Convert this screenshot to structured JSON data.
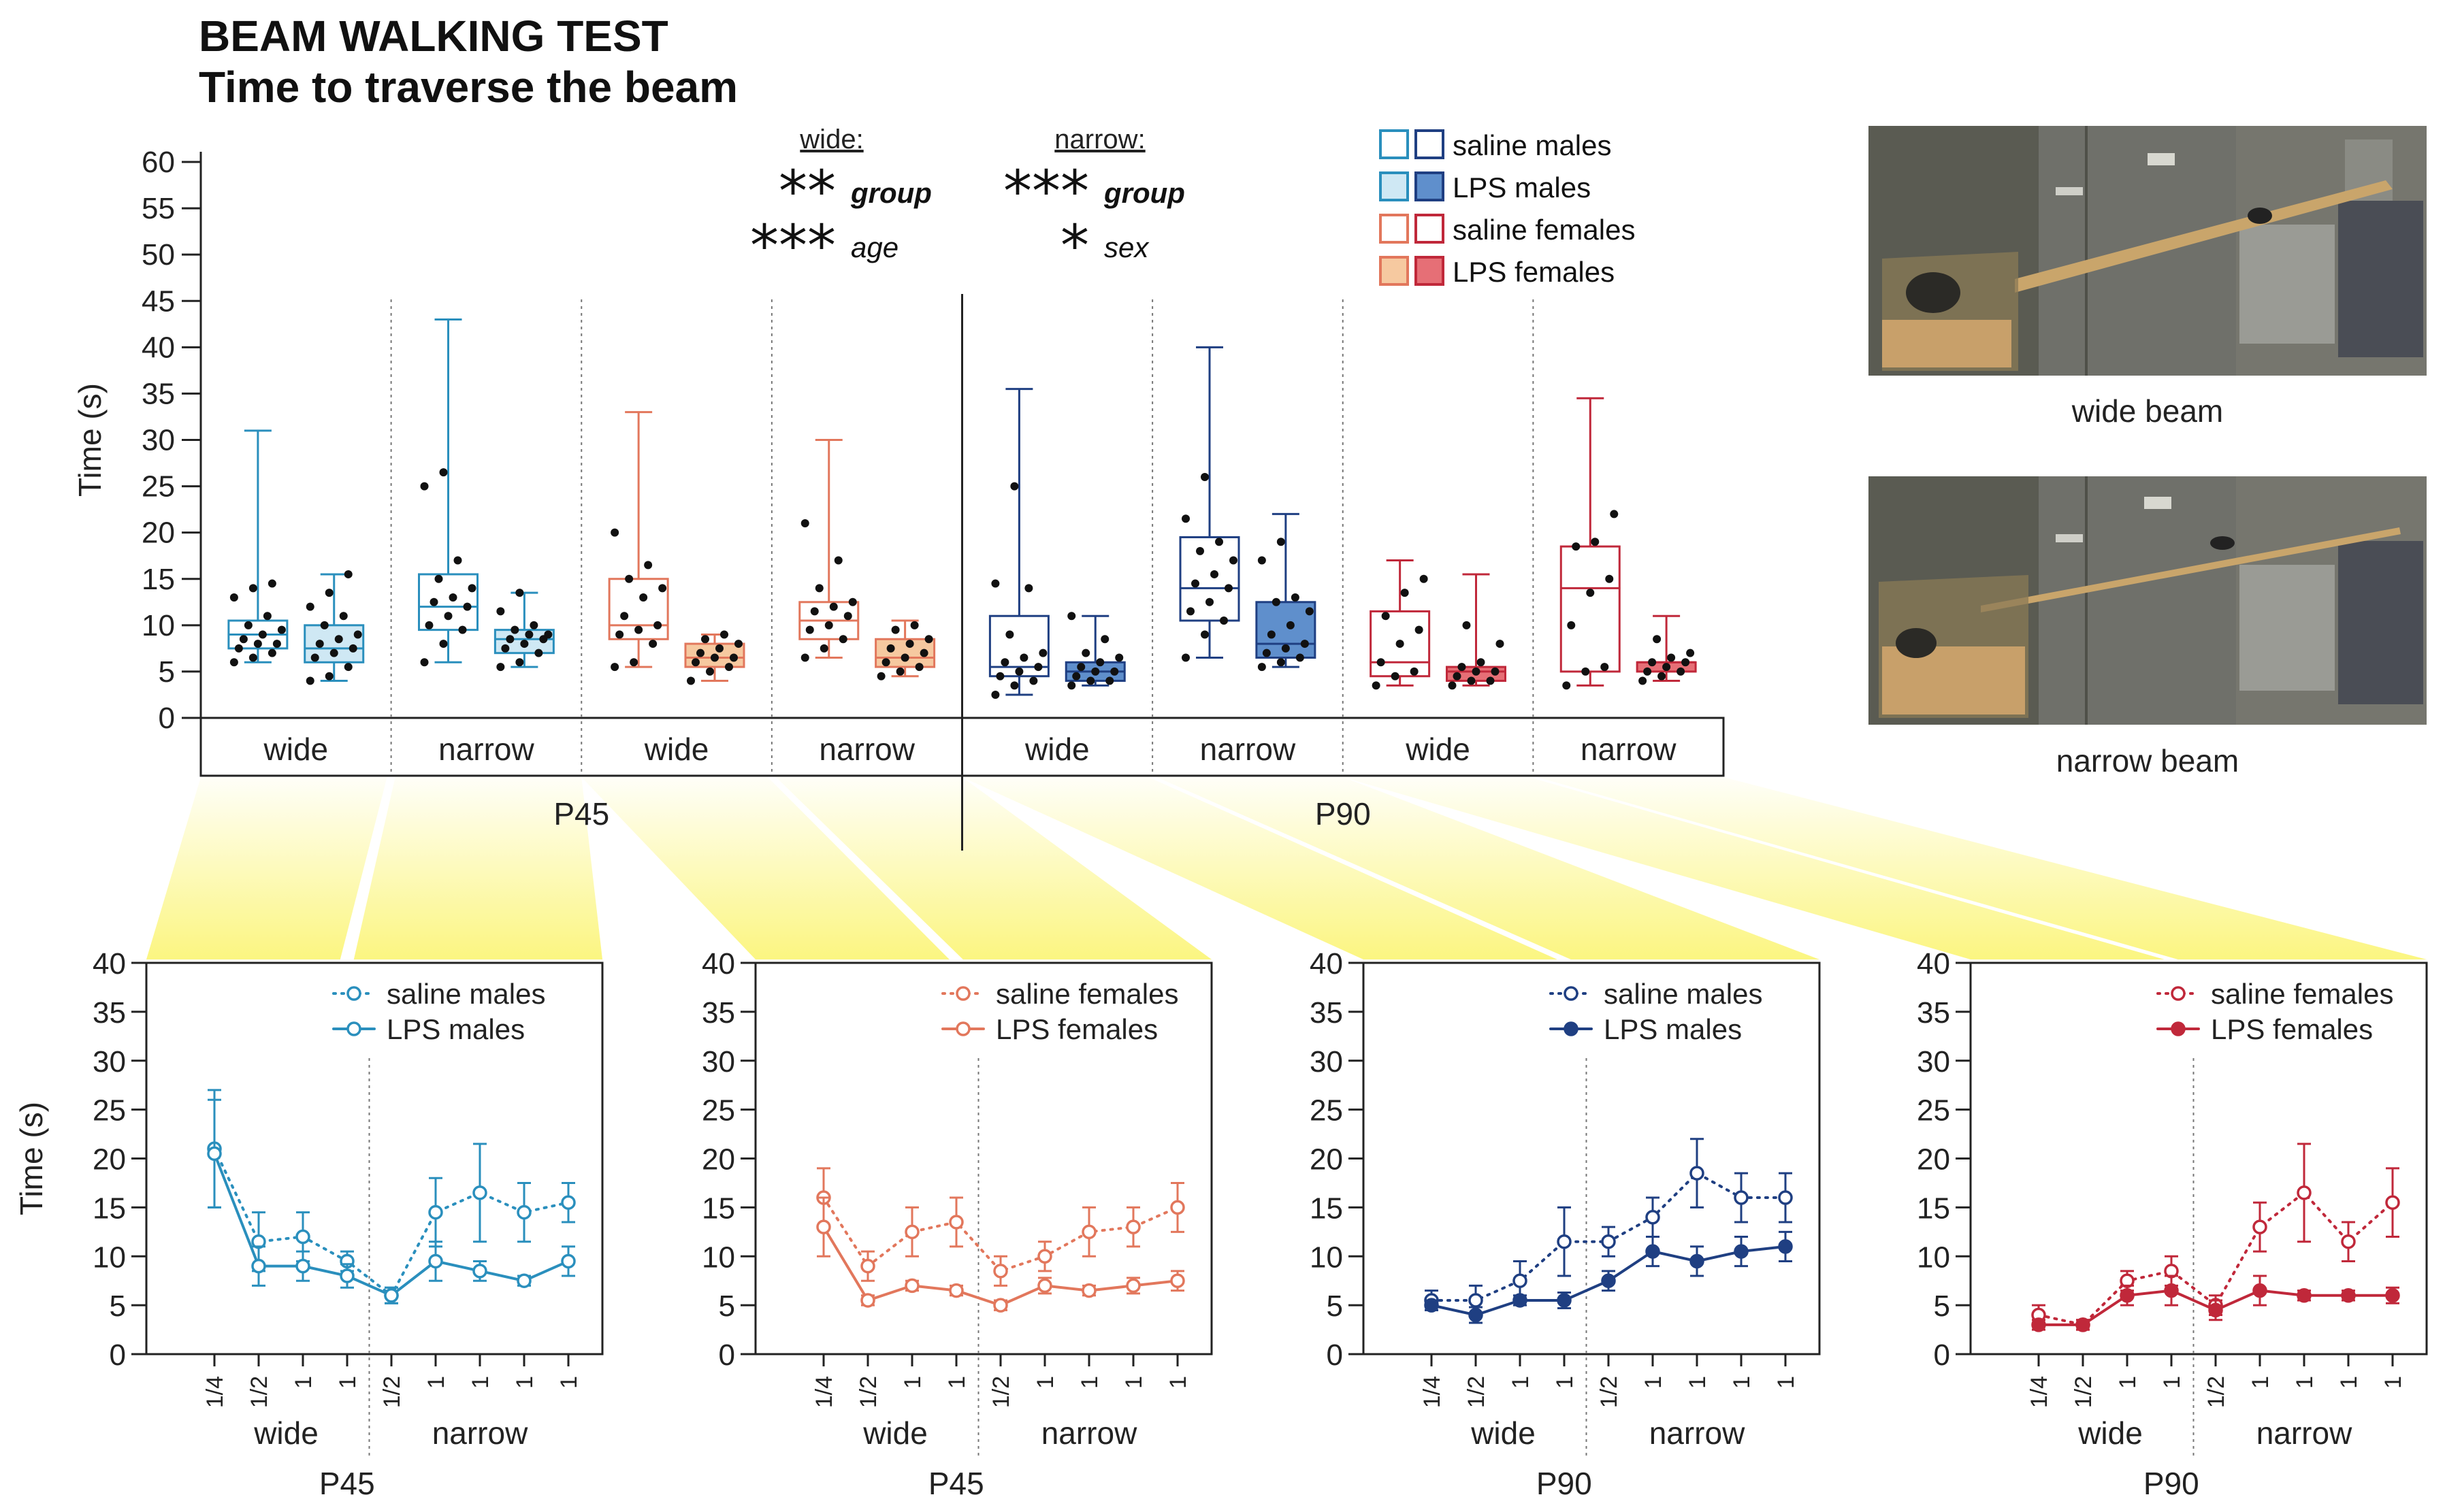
{
  "header": {
    "title_line1": "BEAM WALKING TEST",
    "title_line2": "Time to traverse the beam"
  },
  "colors": {
    "saline_males_p45": "#2a8fbd",
    "lps_males_p45_fill": "#cfe8f4",
    "saline_females_p45": "#e2775c",
    "lps_females_p45_fill": "#f6c9a0",
    "saline_males_p90": "#1f3f82",
    "lps_males_p90_fill": "#5f8fcc",
    "saline_females_p90": "#c0283a",
    "lps_females_p90_fill": "#e66f76",
    "highlight": "#fbf57a"
  },
  "legend": {
    "items": [
      {
        "label": "saline males"
      },
      {
        "label": "LPS males"
      },
      {
        "label": "saline females"
      },
      {
        "label": "LPS females"
      }
    ]
  },
  "stats": {
    "wide_header": "wide:",
    "narrow_header": "narrow:",
    "wide_lines": [
      {
        "stars": "**",
        "effect": "group"
      },
      {
        "stars": "***",
        "effect": "age"
      }
    ],
    "narrow_lines": [
      {
        "stars": "***",
        "effect": "group"
      },
      {
        "stars": "*",
        "effect": "sex"
      }
    ]
  },
  "photos": {
    "wide_caption": "wide beam",
    "narrow_caption": "narrow beam"
  },
  "chart_data": [
    {
      "type": "box",
      "title": "Time to traverse the beam",
      "ylabel": "Time (s)",
      "ylim": [
        0,
        60
      ],
      "yticks": [
        0,
        5,
        10,
        15,
        20,
        25,
        30,
        35,
        40,
        45,
        50,
        55,
        60
      ],
      "age_groups": [
        "P45",
        "P90"
      ],
      "beam_labels": [
        "wide",
        "narrow",
        "wide",
        "narrow",
        "wide",
        "narrow",
        "wide",
        "narrow"
      ],
      "boxes": [
        {
          "age": "P45",
          "beam": "wide",
          "group": "saline males",
          "color": "#2a8fbd",
          "fill": "none",
          "min": 6,
          "q1": 7.5,
          "median": 9,
          "q3": 10.5,
          "max": 31,
          "points": [
            6,
            6.5,
            7,
            7.5,
            8,
            8,
            8.5,
            9,
            9.5,
            10,
            11,
            13,
            14,
            14.5
          ]
        },
        {
          "age": "P45",
          "beam": "wide",
          "group": "LPS males",
          "color": "#2a8fbd",
          "fill": "#cfe8f4",
          "min": 4,
          "q1": 6,
          "median": 7.5,
          "q3": 10,
          "max": 15.5,
          "points": [
            4,
            4.5,
            5.5,
            6.5,
            7,
            7.5,
            8,
            8.5,
            9,
            10,
            11,
            12,
            13.5,
            15.5
          ]
        },
        {
          "age": "P45",
          "beam": "narrow",
          "group": "saline males",
          "color": "#2a8fbd",
          "fill": "none",
          "min": 6,
          "q1": 9.5,
          "median": 12,
          "q3": 15.5,
          "max": 43,
          "points": [
            6,
            8,
            9.5,
            10,
            11,
            12,
            12.5,
            13,
            14,
            15,
            17,
            25,
            26.5
          ]
        },
        {
          "age": "P45",
          "beam": "narrow",
          "group": "LPS males",
          "color": "#2a8fbd",
          "fill": "#cfe8f4",
          "min": 5.5,
          "q1": 7,
          "median": 8.5,
          "q3": 9.5,
          "max": 13.5,
          "points": [
            5.5,
            6,
            7,
            7.5,
            8,
            8.5,
            8.5,
            9,
            9,
            9.5,
            10,
            11.5,
            13.5
          ]
        },
        {
          "age": "P45",
          "beam": "wide",
          "group": "saline females",
          "color": "#e2775c",
          "fill": "none",
          "min": 5.5,
          "q1": 8.5,
          "median": 10,
          "q3": 15,
          "max": 33,
          "points": [
            5.5,
            6,
            8,
            9,
            9.5,
            10,
            11,
            13,
            14,
            15,
            16.5,
            20
          ]
        },
        {
          "age": "P45",
          "beam": "wide",
          "group": "LPS females",
          "color": "#e2775c",
          "fill": "#f6c9a0",
          "min": 4,
          "q1": 5.5,
          "median": 6.5,
          "q3": 8,
          "max": 9,
          "points": [
            4,
            5,
            5.5,
            6,
            6.5,
            6.5,
            7,
            7.5,
            8,
            8.5,
            9
          ]
        },
        {
          "age": "P45",
          "beam": "narrow",
          "group": "saline females",
          "color": "#e2775c",
          "fill": "none",
          "min": 6.5,
          "q1": 8.5,
          "median": 10.5,
          "q3": 12.5,
          "max": 30,
          "points": [
            6.5,
            7.5,
            8.5,
            9.5,
            10,
            11,
            11.5,
            12,
            12.5,
            14,
            17,
            21
          ]
        },
        {
          "age": "P45",
          "beam": "narrow",
          "group": "LPS females",
          "color": "#e2775c",
          "fill": "#f6c9a0",
          "min": 4.5,
          "q1": 5.5,
          "median": 6.5,
          "q3": 8.5,
          "max": 10.5,
          "points": [
            4.5,
            5,
            5.5,
            6,
            6.5,
            7,
            7.5,
            8,
            8.5,
            9.5,
            10
          ]
        },
        {
          "age": "P90",
          "beam": "wide",
          "group": "saline males",
          "color": "#1f3f82",
          "fill": "none",
          "min": 2.5,
          "q1": 4.5,
          "median": 5.5,
          "q3": 11,
          "max": 35.5,
          "points": [
            2.5,
            3.5,
            4,
            4.5,
            5,
            5.5,
            6,
            6.5,
            7,
            9,
            14,
            14.5,
            25
          ]
        },
        {
          "age": "P90",
          "beam": "wide",
          "group": "LPS males",
          "color": "#1f3f82",
          "fill": "#5f8fcc",
          "min": 3.5,
          "q1": 4,
          "median": 5,
          "q3": 6,
          "max": 11,
          "points": [
            3.5,
            4,
            4,
            4.5,
            5,
            5,
            5.5,
            6,
            6.5,
            7,
            8.5,
            11
          ]
        },
        {
          "age": "P90",
          "beam": "narrow",
          "group": "saline males",
          "color": "#1f3f82",
          "fill": "none",
          "min": 6.5,
          "q1": 10.5,
          "median": 14,
          "q3": 19.5,
          "max": 40,
          "points": [
            6.5,
            9,
            10.5,
            11.5,
            12.5,
            14,
            14.5,
            15.5,
            17,
            18,
            19,
            21.5,
            26
          ]
        },
        {
          "age": "P90",
          "beam": "narrow",
          "group": "LPS males",
          "color": "#1f3f82",
          "fill": "#5f8fcc",
          "min": 5.5,
          "q1": 6.5,
          "median": 8,
          "q3": 12.5,
          "max": 22,
          "points": [
            5.5,
            6,
            6.5,
            7,
            7.5,
            8,
            9,
            10,
            11.5,
            12.5,
            13,
            17,
            19
          ]
        },
        {
          "age": "P90",
          "beam": "wide",
          "group": "saline females",
          "color": "#c0283a",
          "fill": "none",
          "min": 3.5,
          "q1": 4.5,
          "median": 6,
          "q3": 11.5,
          "max": 17,
          "points": [
            3.5,
            4.5,
            5,
            6,
            8,
            9.5,
            11,
            13.5,
            15
          ]
        },
        {
          "age": "P90",
          "beam": "wide",
          "group": "LPS females",
          "color": "#c0283a",
          "fill": "#e66f76",
          "min": 3.5,
          "q1": 4,
          "median": 5,
          "q3": 5.5,
          "max": 15.5,
          "points": [
            3.5,
            4,
            4,
            4.5,
            5,
            5,
            5.5,
            6,
            8,
            10
          ]
        },
        {
          "age": "P90",
          "beam": "narrow",
          "group": "saline females",
          "color": "#c0283a",
          "fill": "none",
          "min": 3.5,
          "q1": 5,
          "median": 14,
          "q3": 18.5,
          "max": 34.5,
          "points": [
            3.5,
            5,
            5.5,
            10,
            13.5,
            15,
            18.5,
            19,
            22
          ]
        },
        {
          "age": "P90",
          "beam": "narrow",
          "group": "LPS females",
          "color": "#c0283a",
          "fill": "#e66f76",
          "min": 4,
          "q1": 5,
          "median": 6,
          "q3": 6,
          "max": 11,
          "points": [
            4,
            4.5,
            5,
            5,
            5.5,
            6,
            6,
            6.5,
            7,
            8.5
          ]
        }
      ]
    },
    {
      "type": "line",
      "age": "P45",
      "ylabel": "Time (s)",
      "ylim": [
        0,
        40
      ],
      "yticks": [
        0,
        5,
        10,
        15,
        20,
        25,
        30,
        35,
        40
      ],
      "x_tick_labels": [
        "1/4",
        "1/2",
        "1",
        "1",
        "1/2",
        "1",
        "1",
        "1",
        "1"
      ],
      "beam_groups": [
        "wide",
        "narrow"
      ],
      "series": [
        {
          "name": "saline males",
          "style": "dotted",
          "color": "#2a8fbd",
          "filled_marker": false,
          "values": [
            21,
            11.5,
            12,
            9.5,
            6,
            14.5,
            16.5,
            14.5,
            15.5
          ],
          "errors": [
            6,
            3,
            2.5,
            1,
            0.8,
            3.5,
            5,
            3,
            2
          ]
        },
        {
          "name": "LPS males",
          "style": "solid",
          "color": "#2a8fbd",
          "filled_marker": false,
          "values": [
            20.5,
            9,
            9,
            8,
            6,
            9.5,
            8.5,
            7.5,
            9.5
          ],
          "errors": [
            5.5,
            2,
            1.5,
            1.2,
            0.8,
            2,
            1,
            0.5,
            1.5
          ]
        }
      ]
    },
    {
      "type": "line",
      "age": "P45",
      "ylabel": "Time (s)",
      "ylim": [
        0,
        40
      ],
      "yticks": [
        0,
        5,
        10,
        15,
        20,
        25,
        30,
        35,
        40
      ],
      "x_tick_labels": [
        "1/4",
        "1/2",
        "1",
        "1",
        "1/2",
        "1",
        "1",
        "1",
        "1"
      ],
      "beam_groups": [
        "wide",
        "narrow"
      ],
      "series": [
        {
          "name": "saline females",
          "style": "dotted",
          "color": "#e2775c",
          "filled_marker": false,
          "values": [
            16,
            9,
            12.5,
            13.5,
            8.5,
            10,
            12.5,
            13,
            15
          ],
          "errors": [
            3,
            1.5,
            2.5,
            2.5,
            1.5,
            1.5,
            2.5,
            2,
            2.5
          ]
        },
        {
          "name": "LPS females",
          "style": "solid",
          "color": "#e2775c",
          "filled_marker": false,
          "values": [
            13,
            5.5,
            7,
            6.5,
            5,
            7,
            6.5,
            7,
            7.5
          ],
          "errors": [
            3,
            0.5,
            0.5,
            0.5,
            0.5,
            0.8,
            0.5,
            0.8,
            1
          ]
        }
      ]
    },
    {
      "type": "line",
      "age": "P90",
      "ylabel": "Time (s)",
      "ylim": [
        0,
        40
      ],
      "yticks": [
        0,
        5,
        10,
        15,
        20,
        25,
        30,
        35,
        40
      ],
      "x_tick_labels": [
        "1/4",
        "1/2",
        "1",
        "1",
        "1/2",
        "1",
        "1",
        "1",
        "1"
      ],
      "beam_groups": [
        "wide",
        "narrow"
      ],
      "series": [
        {
          "name": "saline males",
          "style": "dotted",
          "color": "#1f3f82",
          "filled_marker": false,
          "values": [
            5.5,
            5.5,
            7.5,
            11.5,
            11.5,
            14,
            18.5,
            16,
            16
          ],
          "errors": [
            1,
            1.5,
            2,
            3.5,
            1.5,
            2,
            3.5,
            2.5,
            2.5
          ]
        },
        {
          "name": "LPS males",
          "style": "solid",
          "color": "#1f3f82",
          "filled_marker": true,
          "values": [
            5,
            4,
            5.5,
            5.5,
            7.5,
            10.5,
            9.5,
            10.5,
            11
          ],
          "errors": [
            0.5,
            0.8,
            0.5,
            0.8,
            1,
            1.5,
            1.5,
            1.5,
            1.5
          ]
        }
      ]
    },
    {
      "type": "line",
      "age": "P90",
      "ylabel": "Time (s)",
      "ylim": [
        0,
        40
      ],
      "yticks": [
        0,
        5,
        10,
        15,
        20,
        25,
        30,
        35,
        40
      ],
      "x_tick_labels": [
        "1/4",
        "1/2",
        "1",
        "1",
        "1/2",
        "1",
        "1",
        "1",
        "1"
      ],
      "beam_groups": [
        "wide",
        "narrow"
      ],
      "series": [
        {
          "name": "saline females",
          "style": "dotted",
          "color": "#c0283a",
          "filled_marker": false,
          "values": [
            4,
            3,
            7.5,
            8.5,
            5,
            13,
            16.5,
            11.5,
            15.5
          ],
          "errors": [
            1,
            0.5,
            1,
            1.5,
            1,
            2.5,
            5,
            2,
            3.5
          ]
        },
        {
          "name": "LPS females",
          "style": "solid",
          "color": "#c0283a",
          "filled_marker": true,
          "values": [
            3,
            3,
            6,
            6.5,
            4.5,
            6.5,
            6,
            6,
            6
          ],
          "errors": [
            0.5,
            0.5,
            1,
            1.5,
            1,
            1.5,
            0.5,
            0.5,
            0.8
          ]
        }
      ]
    }
  ]
}
